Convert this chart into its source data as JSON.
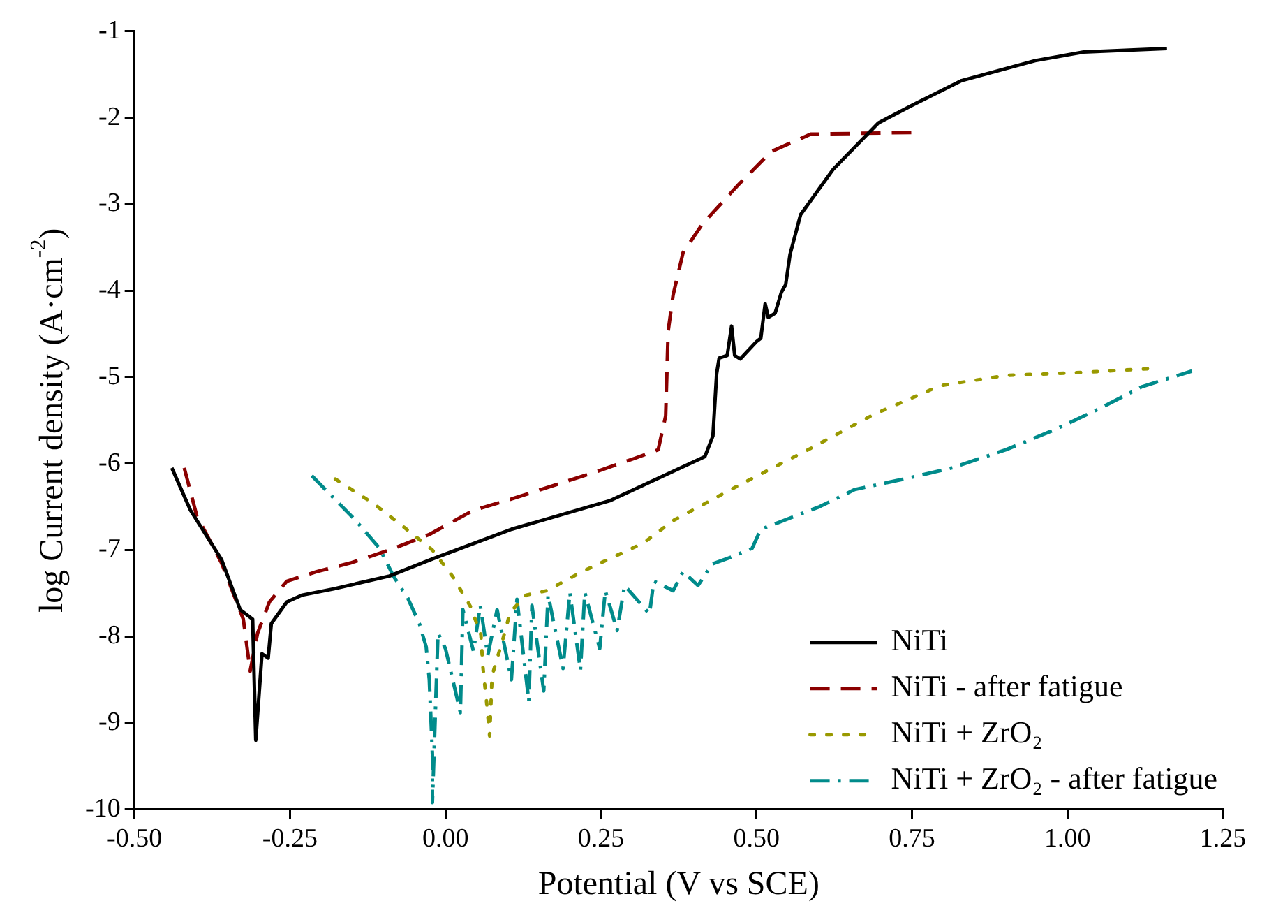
{
  "chart_data": {
    "type": "line",
    "xlabel": "Potential (V vs SCE)",
    "ylabel": "log Current density (A·cm$^{-2}$)",
    "xlim": [
      -0.5,
      1.25
    ],
    "xticks": [
      {
        "value": -0.5,
        "label": "-0.50"
      },
      {
        "value": -0.25,
        "label": "-0.25"
      },
      {
        "value": 0,
        "label": "0.00"
      },
      {
        "value": 0.25,
        "label": "0.25"
      },
      {
        "value": 0.5,
        "label": "0.50"
      },
      {
        "value": 0.75,
        "label": "0.75"
      },
      {
        "value": 1,
        "label": "1.00"
      },
      {
        "value": 1.25,
        "label": "1.25"
      }
    ],
    "ylim": [
      -10,
      -1
    ],
    "yticks": [
      -10,
      -9,
      -8,
      -7,
      -6,
      -5,
      -4,
      -3,
      -2,
      -1
    ],
    "grid": false,
    "legend": "bottom right",
    "marker": "none",
    "series": [
      {
        "name": "NiTi",
        "color": "#000000",
        "line_style": "solid",
        "x": [
          -0.44,
          -0.41,
          -0.36,
          -0.33,
          -0.31,
          -0.305,
          -0.295,
          -0.285,
          -0.28,
          -0.255,
          -0.23,
          -0.18,
          -0.09,
          -0.02,
          0.106,
          0.264,
          0.417,
          0.43,
          0.436,
          0.44,
          0.453,
          0.46,
          0.465,
          0.474,
          0.5,
          0.507,
          0.514,
          0.519,
          0.53,
          0.54,
          0.547,
          0.554,
          0.571,
          0.59,
          0.623,
          0.658,
          0.696,
          0.752,
          0.83,
          0.948,
          1.026,
          1.16
        ],
        "values": [
          -6.05,
          -6.54,
          -7.11,
          -7.69,
          -7.8,
          -9.2,
          -8.2,
          -8.25,
          -7.85,
          -7.6,
          -7.52,
          -7.45,
          -7.3,
          -7.1,
          -6.76,
          -6.43,
          -5.92,
          -5.68,
          -4.96,
          -4.78,
          -4.75,
          -4.41,
          -4.75,
          -4.79,
          -4.59,
          -4.55,
          -4.15,
          -4.31,
          -4.26,
          -4.02,
          -3.93,
          -3.58,
          -3.12,
          -2.93,
          -2.6,
          -2.34,
          -2.06,
          -1.85,
          -1.57,
          -1.34,
          -1.24,
          -1.2
        ]
      },
      {
        "name": "NiTi - after fatigue",
        "color": "#8b0000",
        "line_style": "dashed",
        "x": [
          -0.42,
          -0.4,
          -0.36,
          -0.325,
          -0.314,
          -0.302,
          -0.283,
          -0.255,
          -0.207,
          -0.153,
          -0.09,
          -0.026,
          0.045,
          0.106,
          0.24,
          0.304,
          0.342,
          0.354,
          0.358,
          0.366,
          0.382,
          0.413,
          0.469,
          0.524,
          0.587,
          0.75
        ],
        "values": [
          -6.05,
          -6.6,
          -7.15,
          -7.8,
          -8.4,
          -7.96,
          -7.6,
          -7.36,
          -7.25,
          -7.15,
          -7.0,
          -6.82,
          -6.54,
          -6.41,
          -6.1,
          -5.94,
          -5.84,
          -5.45,
          -4.47,
          -4.05,
          -3.56,
          -3.23,
          -2.79,
          -2.39,
          -2.19,
          -2.17
        ]
      },
      {
        "name": "NiTi + ZrO₂",
        "color": "#999900",
        "line_style": "dotted",
        "x": [
          -0.177,
          -0.116,
          -0.066,
          -0.021,
          0.012,
          0.04,
          0.057,
          0.06,
          0.066,
          0.071,
          0.075,
          0.092,
          0.104,
          0.13,
          0.163,
          0.217,
          0.264,
          0.318,
          0.366,
          0.472,
          0.583,
          0.689,
          0.795,
          0.901,
          1.012,
          1.137
        ],
        "values": [
          -6.18,
          -6.46,
          -6.74,
          -7.0,
          -7.31,
          -7.65,
          -7.98,
          -8.34,
          -8.75,
          -9.15,
          -8.45,
          -8.04,
          -7.72,
          -7.52,
          -7.47,
          -7.26,
          -7.1,
          -6.92,
          -6.66,
          -6.25,
          -5.84,
          -5.43,
          -5.1,
          -4.98,
          -4.95,
          -4.9
        ]
      },
      {
        "name": "NiTi + ZrO₂ - after fatigue",
        "color": "#008b8b",
        "line_style": "dashdot",
        "x": [
          -0.215,
          -0.144,
          -0.106,
          -0.083,
          -0.061,
          -0.042,
          -0.031,
          -0.026,
          -0.021,
          -0.021,
          -0.012,
          0,
          0.024,
          0.028,
          0.045,
          0.056,
          0.068,
          0.083,
          0.106,
          0.115,
          0.134,
          0.139,
          0.158,
          0.165,
          0.189,
          0.2,
          0.217,
          0.224,
          0.248,
          0.257,
          0.276,
          0.288,
          0.328,
          0.335,
          0.366,
          0.382,
          0.406,
          0.429,
          0.46,
          0.493,
          0.507,
          0.601,
          0.658,
          0.743,
          0.814,
          0.901,
          0.979,
          1.05,
          1.12,
          1.2
        ],
        "values": [
          -6.14,
          -6.66,
          -6.98,
          -7.31,
          -7.55,
          -7.85,
          -8.12,
          -8.5,
          -9.36,
          -9.92,
          -7.96,
          -8.14,
          -8.88,
          -7.69,
          -8.17,
          -7.64,
          -8.22,
          -7.69,
          -8.5,
          -7.57,
          -8.75,
          -7.64,
          -8.63,
          -7.52,
          -8.37,
          -7.49,
          -8.39,
          -7.49,
          -8.14,
          -7.47,
          -7.93,
          -7.41,
          -7.74,
          -7.36,
          -7.47,
          -7.25,
          -7.41,
          -7.16,
          -7.08,
          -6.98,
          -6.76,
          -6.5,
          -6.3,
          -6.17,
          -6.05,
          -5.84,
          -5.61,
          -5.37,
          -5.11,
          -4.93
        ]
      }
    ]
  }
}
